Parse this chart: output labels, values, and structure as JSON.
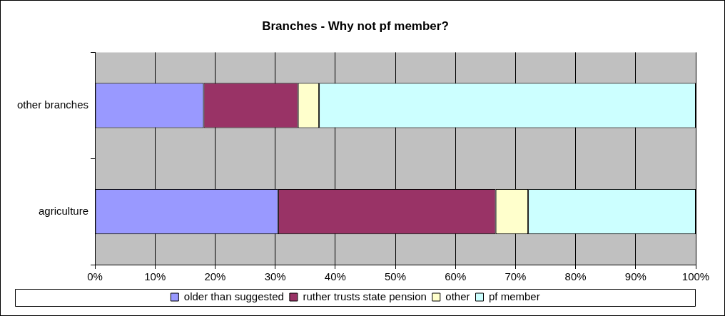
{
  "chart_data": {
    "type": "bar",
    "orientation": "horizontal",
    "stacked": true,
    "title": "Branches - Why not pf member?",
    "categories": [
      "other branches",
      "agriculture"
    ],
    "series": [
      {
        "name": "older than suggested",
        "color": "#9999ff",
        "values": [
          18.1,
          30.5
        ]
      },
      {
        "name": "ruther trusts state pension",
        "color": "#993366",
        "values": [
          15.7,
          36.2
        ]
      },
      {
        "name": "other",
        "color": "#ffffcc",
        "values": [
          3.5,
          5.4
        ]
      },
      {
        "name": "pf member",
        "color": "#ccffff",
        "values": [
          62.7,
          27.9
        ]
      }
    ],
    "xlim": [
      0,
      100
    ],
    "xticks": [
      {
        "value": 0,
        "label": "0%"
      },
      {
        "value": 10,
        "label": "10%"
      },
      {
        "value": 20,
        "label": "20%"
      },
      {
        "value": 30,
        "label": "30%"
      },
      {
        "value": 40,
        "label": "40%"
      },
      {
        "value": 50,
        "label": "50%"
      },
      {
        "value": 60,
        "label": "60%"
      },
      {
        "value": 70,
        "label": "70%"
      },
      {
        "value": 80,
        "label": "80%"
      },
      {
        "value": 90,
        "label": "90%"
      },
      {
        "value": 100,
        "label": "100%"
      }
    ],
    "grid": "x",
    "legend": "bottom"
  }
}
